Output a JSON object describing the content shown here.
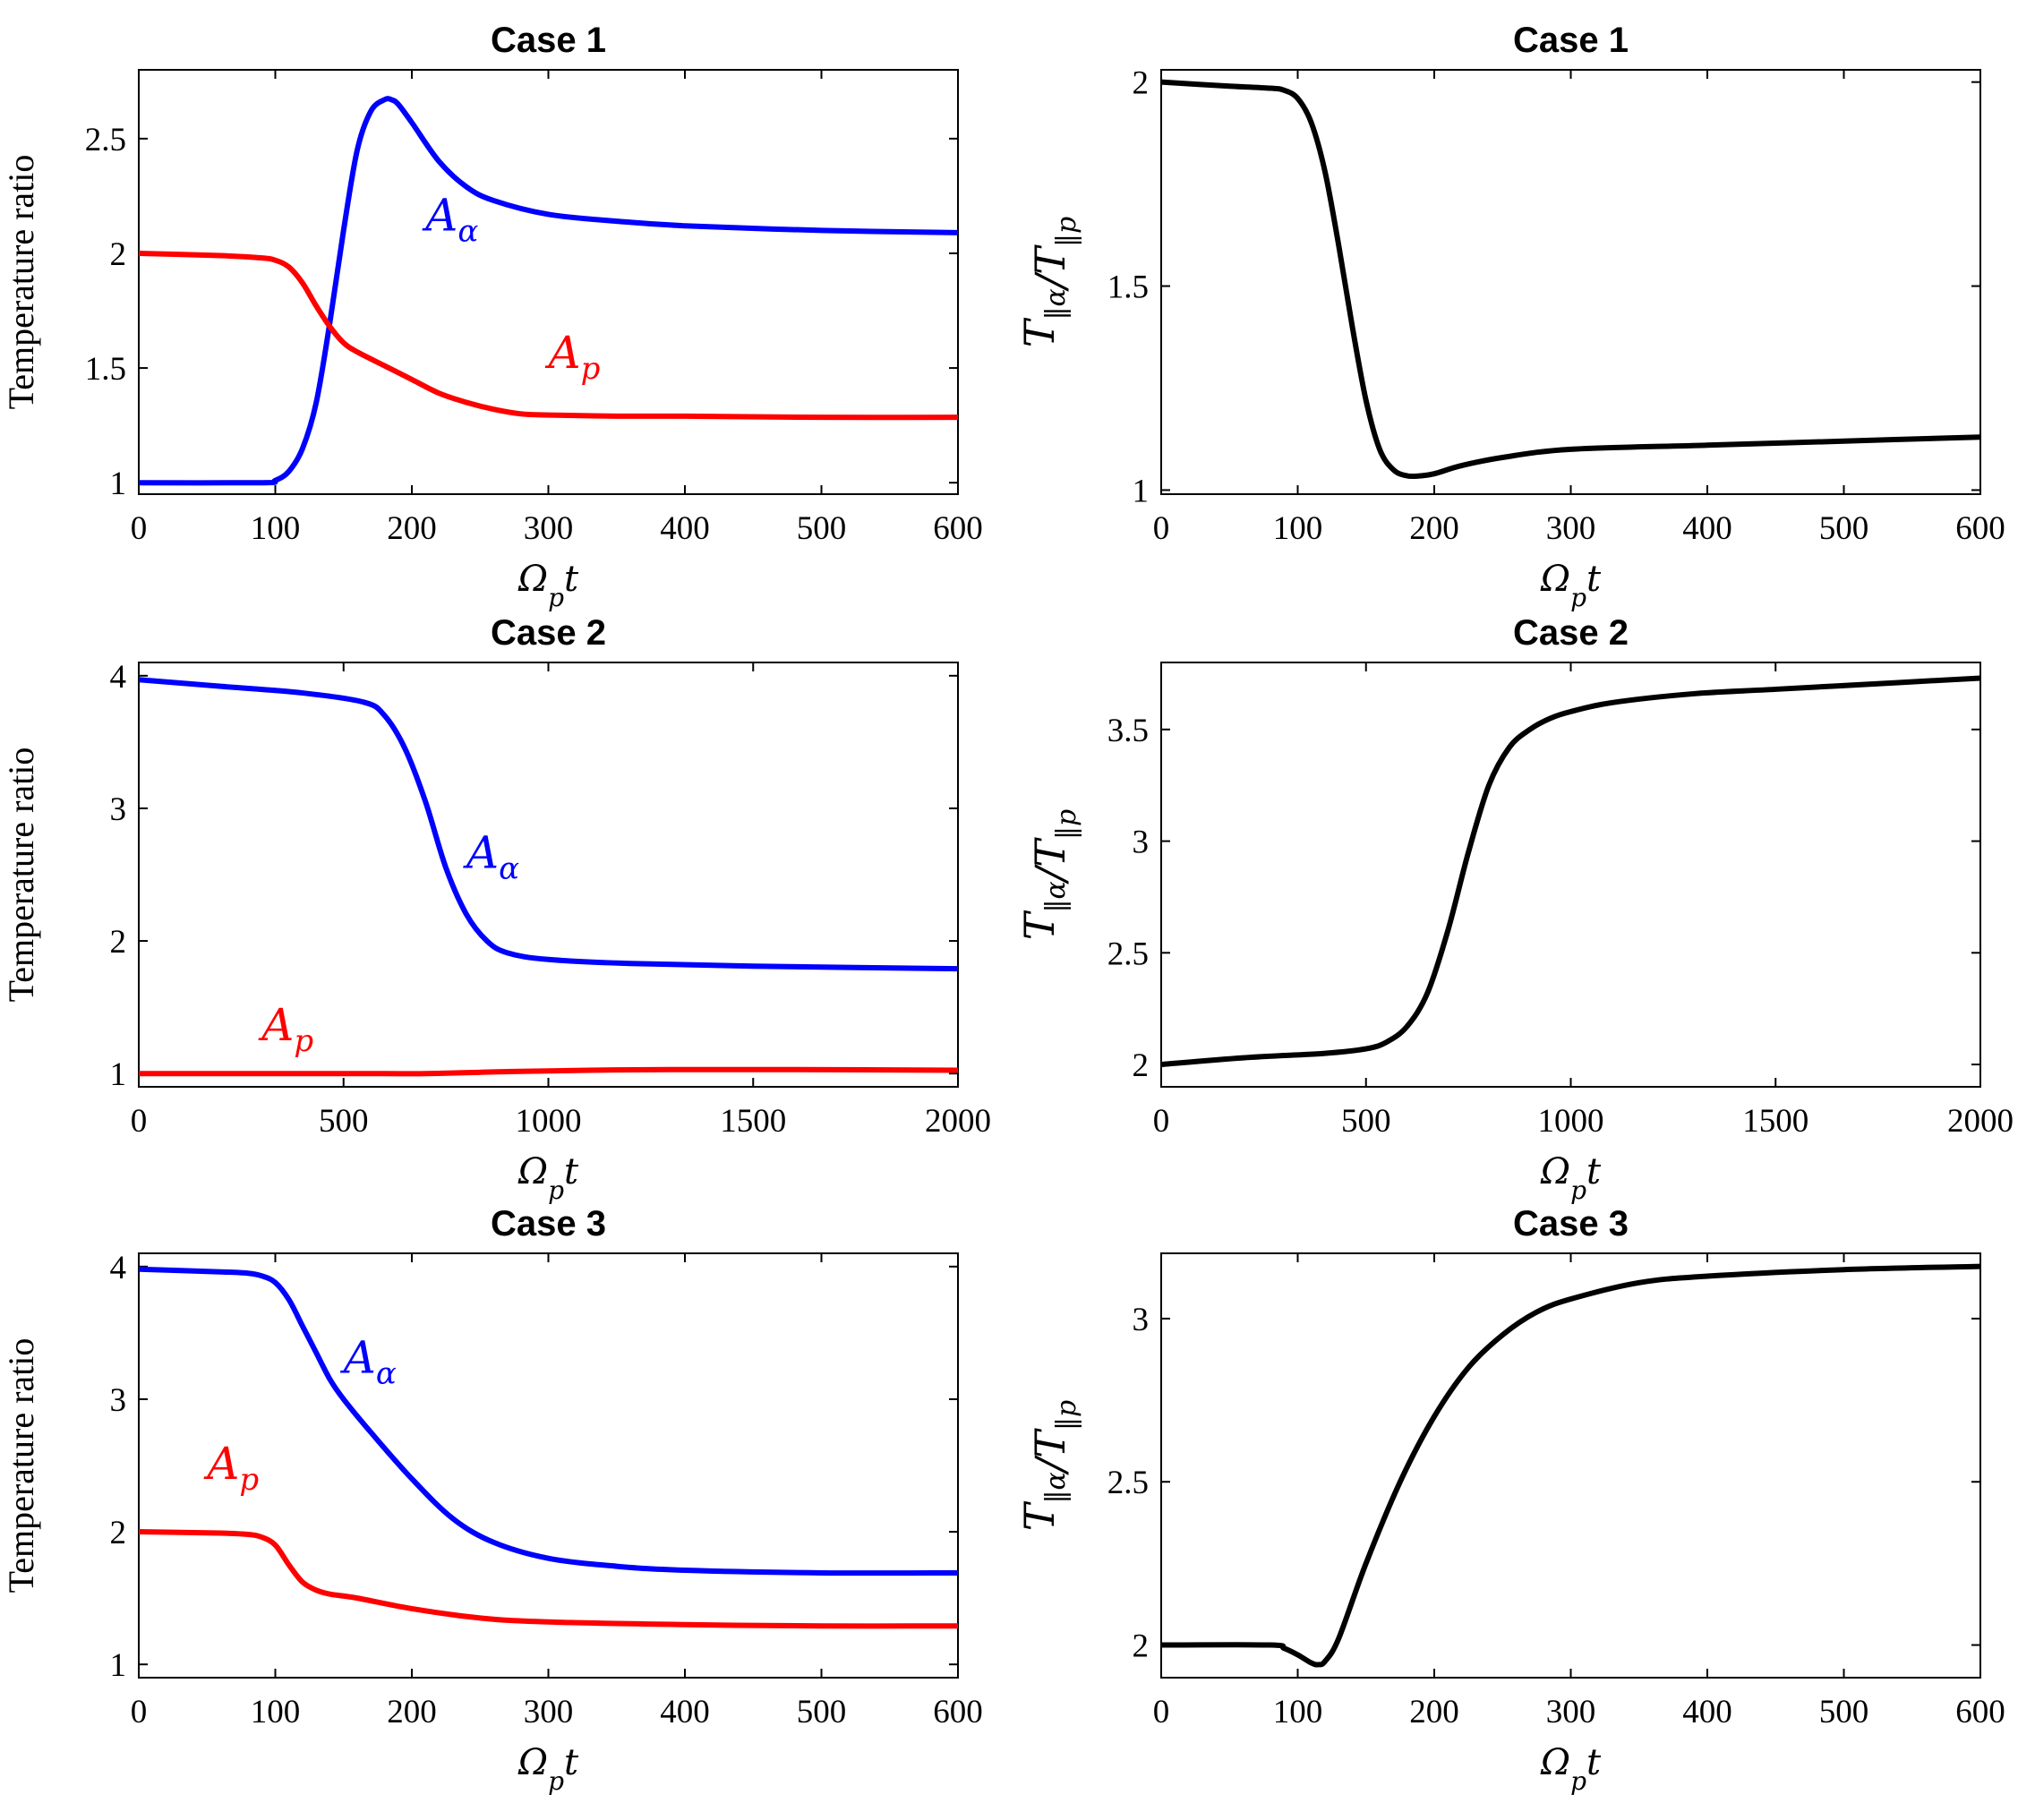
{
  "colors": {
    "blue": "#0000ff",
    "red": "#ff0000",
    "black": "#000000"
  },
  "chart_data": [
    {
      "type": "line",
      "title": "Case 1",
      "xlabel": "Ω_p t",
      "ylabel": "Temperature ratio",
      "xlim": [
        0,
        600
      ],
      "ylim": [
        0.95,
        2.8
      ],
      "xticks": [
        "0",
        "100",
        "200",
        "300",
        "400",
        "500",
        "600"
      ],
      "yticks": [
        "1",
        "1.5",
        "2",
        "2.5"
      ],
      "series": [
        {
          "name": "A_α",
          "color": "#0000ff",
          "x": [
            0,
            90,
            100,
            110,
            120,
            130,
            140,
            150,
            160,
            170,
            180,
            185,
            190,
            200,
            220,
            240,
            260,
            300,
            350,
            400,
            500,
            600
          ],
          "y": [
            1.0,
            1.0,
            1.01,
            1.05,
            1.15,
            1.35,
            1.7,
            2.1,
            2.45,
            2.62,
            2.67,
            2.67,
            2.65,
            2.57,
            2.4,
            2.29,
            2.23,
            2.17,
            2.14,
            2.12,
            2.1,
            2.09
          ]
        },
        {
          "name": "A_p",
          "color": "#ff0000",
          "x": [
            0,
            60,
            90,
            100,
            110,
            120,
            130,
            140,
            150,
            160,
            180,
            200,
            220,
            240,
            260,
            280,
            300,
            350,
            400,
            500,
            600
          ],
          "y": [
            2.0,
            1.99,
            1.98,
            1.97,
            1.94,
            1.87,
            1.77,
            1.68,
            1.61,
            1.57,
            1.51,
            1.45,
            1.39,
            1.35,
            1.32,
            1.3,
            1.295,
            1.29,
            1.29,
            1.285,
            1.285
          ]
        }
      ],
      "annotations": [
        {
          "base": "A",
          "sub": "α",
          "x": 210,
          "y": 2.1,
          "color": "#0000ff"
        },
        {
          "base": "A",
          "sub": "p",
          "x": 300,
          "y": 1.5,
          "color": "#ff0000"
        }
      ]
    },
    {
      "type": "line",
      "title": "Case 1",
      "xlabel": "Ω_p t",
      "ylabel": "T‖α/T‖p",
      "xlim": [
        0,
        600
      ],
      "ylim": [
        0.99,
        2.03
      ],
      "xticks": [
        "0",
        "100",
        "200",
        "300",
        "400",
        "500",
        "600"
      ],
      "yticks": [
        "1",
        "1.5",
        "2"
      ],
      "series": [
        {
          "name": "T‖α/T‖p",
          "color": "#000000",
          "x": [
            0,
            50,
            80,
            90,
            100,
            110,
            120,
            130,
            140,
            150,
            160,
            170,
            180,
            190,
            200,
            220,
            250,
            300,
            400,
            500,
            600
          ],
          "y": [
            2.0,
            1.99,
            1.985,
            1.98,
            1.96,
            1.9,
            1.78,
            1.6,
            1.4,
            1.22,
            1.1,
            1.05,
            1.035,
            1.035,
            1.04,
            1.06,
            1.08,
            1.1,
            1.11,
            1.12,
            1.13
          ]
        }
      ]
    },
    {
      "type": "line",
      "title": "Case 2",
      "xlabel": "Ω_p t",
      "ylabel": "Temperature ratio",
      "xlim": [
        0,
        2000
      ],
      "ylim": [
        0.9,
        4.1
      ],
      "xticks": [
        "0",
        "500",
        "1000",
        "1500",
        "2000"
      ],
      "yticks": [
        "1",
        "2",
        "3",
        "4"
      ],
      "series": [
        {
          "name": "A_α",
          "color": "#0000ff",
          "x": [
            0,
            200,
            400,
            550,
            600,
            650,
            700,
            750,
            800,
            850,
            900,
            1000,
            1200,
            1500,
            2000
          ],
          "y": [
            3.97,
            3.92,
            3.87,
            3.8,
            3.7,
            3.45,
            3.05,
            2.55,
            2.2,
            2.0,
            1.91,
            1.86,
            1.83,
            1.81,
            1.79
          ]
        },
        {
          "name": "A_p",
          "color": "#ff0000",
          "x": [
            0,
            500,
            700,
            900,
            1100,
            1300,
            1600,
            2000
          ],
          "y": [
            1.0,
            1.0,
            1.0,
            1.015,
            1.025,
            1.03,
            1.03,
            1.025
          ]
        }
      ],
      "annotations": [
        {
          "base": "A",
          "sub": "α",
          "x": 800,
          "y": 2.55,
          "color": "#0000ff"
        },
        {
          "base": "A",
          "sub": "p",
          "x": 300,
          "y": 1.25,
          "color": "#ff0000"
        }
      ]
    },
    {
      "type": "line",
      "title": "Case 2",
      "xlabel": "Ω_p t",
      "ylabel": "T‖α/T‖p",
      "xlim": [
        0,
        2000
      ],
      "ylim": [
        1.9,
        3.8
      ],
      "xticks": [
        "0",
        "500",
        "1000",
        "1500",
        "2000"
      ],
      "yticks": [
        "2",
        "2.5",
        "3",
        "3.5"
      ],
      "series": [
        {
          "name": "T‖α/T‖p",
          "color": "#000000",
          "x": [
            0,
            200,
            400,
            500,
            550,
            600,
            650,
            700,
            750,
            800,
            850,
            900,
            950,
            1000,
            1100,
            1300,
            1500,
            1800,
            2000
          ],
          "y": [
            2.0,
            2.03,
            2.05,
            2.07,
            2.1,
            2.17,
            2.32,
            2.6,
            2.95,
            3.25,
            3.42,
            3.5,
            3.55,
            3.58,
            3.62,
            3.66,
            3.68,
            3.71,
            3.73
          ]
        }
      ]
    },
    {
      "type": "line",
      "title": "Case 3",
      "xlabel": "Ω_p t",
      "ylabel": "Temperature ratio",
      "xlim": [
        0,
        600
      ],
      "ylim": [
        0.9,
        4.1
      ],
      "xticks": [
        "0",
        "100",
        "200",
        "300",
        "400",
        "500",
        "600"
      ],
      "yticks": [
        "1",
        "2",
        "3",
        "4"
      ],
      "series": [
        {
          "name": "A_α",
          "color": "#0000ff",
          "x": [
            0,
            60,
            80,
            90,
            100,
            110,
            120,
            130,
            140,
            150,
            170,
            200,
            230,
            260,
            300,
            350,
            400,
            500,
            600
          ],
          "y": [
            3.98,
            3.96,
            3.95,
            3.93,
            3.88,
            3.75,
            3.55,
            3.35,
            3.15,
            3.0,
            2.75,
            2.4,
            2.1,
            1.92,
            1.8,
            1.74,
            1.71,
            1.69,
            1.69
          ]
        },
        {
          "name": "A_p",
          "color": "#ff0000",
          "x": [
            0,
            60,
            80,
            90,
            100,
            110,
            120,
            130,
            140,
            160,
            200,
            250,
            300,
            400,
            500,
            600
          ],
          "y": [
            2.0,
            1.99,
            1.98,
            1.96,
            1.9,
            1.75,
            1.62,
            1.56,
            1.53,
            1.5,
            1.42,
            1.35,
            1.32,
            1.3,
            1.29,
            1.29
          ]
        }
      ],
      "annotations": [
        {
          "base": "A",
          "sub": "α",
          "x": 150,
          "y": 3.2,
          "color": "#0000ff"
        },
        {
          "base": "A",
          "sub": "p",
          "x": 50,
          "y": 2.4,
          "color": "#ff0000"
        }
      ]
    },
    {
      "type": "line",
      "title": "Case 3",
      "xlabel": "Ω_p t",
      "ylabel": "T‖α/T‖p",
      "xlim": [
        0,
        600
      ],
      "ylim": [
        1.9,
        3.2
      ],
      "xticks": [
        "0",
        "100",
        "200",
        "300",
        "400",
        "500",
        "600"
      ],
      "yticks": [
        "2",
        "2.5",
        "3"
      ],
      "series": [
        {
          "name": "T‖α/T‖p",
          "color": "#000000",
          "x": [
            0,
            80,
            90,
            100,
            110,
            115,
            120,
            130,
            150,
            175,
            200,
            225,
            250,
            275,
            300,
            350,
            400,
            500,
            600
          ],
          "y": [
            2.0,
            2.0,
            1.99,
            1.97,
            1.945,
            1.94,
            1.95,
            2.02,
            2.25,
            2.5,
            2.7,
            2.85,
            2.95,
            3.02,
            3.06,
            3.11,
            3.13,
            3.15,
            3.16
          ]
        }
      ]
    }
  ]
}
